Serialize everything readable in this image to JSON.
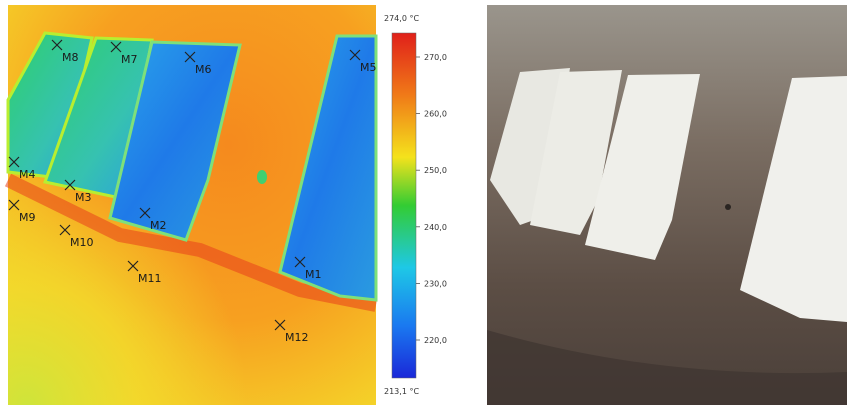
{
  "thermal_image": {
    "markers": [
      "M1",
      "M2",
      "M3",
      "M4",
      "M5",
      "M6",
      "M7",
      "M8",
      "M9",
      "M10",
      "M11",
      "M12"
    ]
  },
  "colorbar": {
    "max_label": "274,0 °C",
    "min_label": "213,1 °C",
    "tick_labels": [
      "270,0",
      "260,0",
      "250,0",
      "240,0",
      "230,0",
      "220,0"
    ]
  }
}
